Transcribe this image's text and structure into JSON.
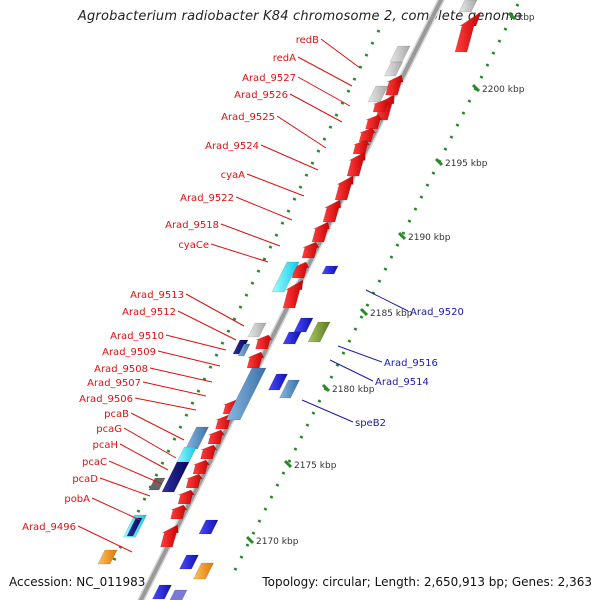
{
  "title": "Agrobacterium radiobacter K84 chromosome 2, complete genome",
  "accession": "Accession: NC_011983",
  "summary": "Topology: circular; Length: 2,650,913 bp; Genes: 2,363",
  "colors": {
    "label_left": "#dd1111",
    "label_right": "#1a1aa8",
    "backbone": "#9a9a9a",
    "tick": "#2a8a2a"
  },
  "scale_labels": [
    "kbp",
    "2200 kbp",
    "2195 kbp",
    "2190 kbp",
    "2185 kbp",
    "2180 kbp",
    "2175 kbp",
    "2170 kbp"
  ],
  "left_genes": [
    "redB",
    "redA",
    "Arad_9527",
    "Arad_9526",
    "Arad_9525",
    "Arad_9524",
    "cyaA",
    "Arad_9522",
    "Arad_9518",
    "cyaCe",
    "Arad_9513",
    "Arad_9512",
    "Arad_9510",
    "Arad_9509",
    "Arad_9508",
    "Arad_9507",
    "Arad_9506",
    "pcaB",
    "pcaG",
    "pcaH",
    "pcaC",
    "pcaD",
    "pobA",
    "Arad_9496"
  ],
  "right_genes": [
    "Arad_9520",
    "Arad_9516",
    "Arad_9514",
    "speB2"
  ]
}
